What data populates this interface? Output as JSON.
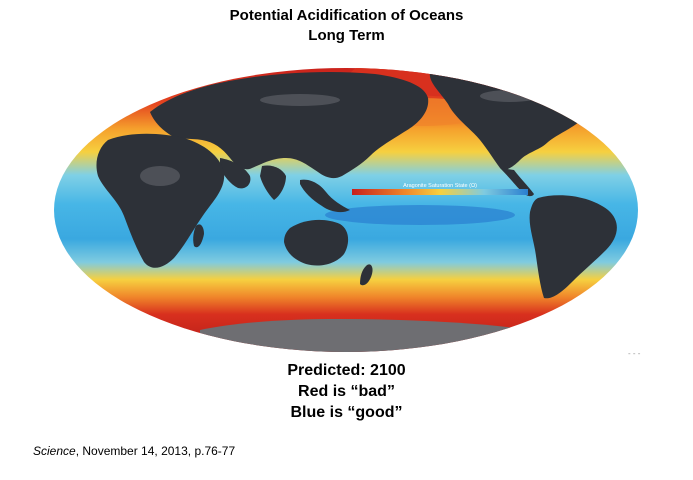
{
  "title": {
    "line1": "Potential Acidification of Oceans",
    "line2": "Long Term"
  },
  "map": {
    "legend_label": "Aragonite Saturation State (Ω)",
    "colors": {
      "ocean_bad": "#c8201c",
      "ocean_warn": "#f08a24",
      "ocean_mid": "#f6d040",
      "ocean_good": "#47b6e6",
      "land": "#2d3138",
      "ice": "#6e6e72"
    }
  },
  "caption": {
    "line1": "Predicted: 2100",
    "line2": "Red is “bad”",
    "line3": "Blue is “good”"
  },
  "citation": {
    "journal": "Science",
    "details": ", November 14, 2013, p.76-77"
  }
}
